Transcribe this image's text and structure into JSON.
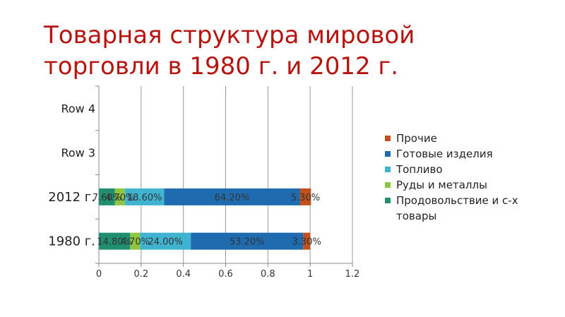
{
  "title": "Товарная структура мировой торговли в 1980 г. и 2012 г.",
  "chart_data": {
    "type": "bar",
    "orientation": "horizontal",
    "stacked": true,
    "categories": [
      "1980 г.",
      "2012 г.",
      "Row 3",
      "Row 4"
    ],
    "series": [
      {
        "name": "Продовольствие и  с-х товары",
        "color": "#1f8f6f",
        "values": [
          0.148,
          0.076,
          null,
          null
        ],
        "labels": [
          "14.80%",
          "7.60%",
          "",
          ""
        ]
      },
      {
        "name": "Руды и металлы",
        "color": "#8dc63f",
        "values": [
          0.047,
          0.047,
          null,
          null
        ],
        "labels": [
          "4.70%",
          "4.70%",
          "",
          ""
        ]
      },
      {
        "name": "Топливо",
        "color": "#3fb3cf",
        "values": [
          0.24,
          0.186,
          null,
          null
        ],
        "labels": [
          "24.00%",
          "18.60%",
          "",
          ""
        ]
      },
      {
        "name": "Готовые изделия",
        "color": "#1f6bb0",
        "values": [
          0.532,
          0.642,
          null,
          null
        ],
        "labels": [
          "53.20%",
          "64.20%",
          "",
          ""
        ]
      },
      {
        "name": "Прочие",
        "color": "#c0501d",
        "values": [
          0.033,
          0.053,
          null,
          null
        ],
        "labels": [
          "3.30%",
          "5.30%",
          "",
          ""
        ]
      }
    ],
    "xlim": [
      0,
      1.2
    ],
    "xticks": [
      "0",
      "0.2",
      "0.4",
      "0.6",
      "0.8",
      "1",
      "1.2"
    ],
    "grid": true,
    "legend": "right"
  }
}
